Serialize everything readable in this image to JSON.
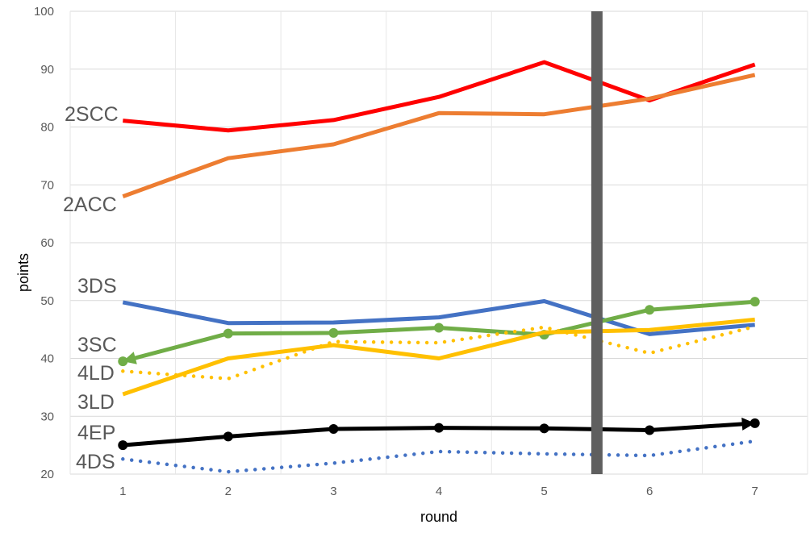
{
  "chart_data": {
    "type": "line",
    "xlabel": "round",
    "ylabel": "points",
    "x": [
      1,
      2,
      3,
      4,
      5,
      6,
      7
    ],
    "xlim": [
      0.5,
      7.5
    ],
    "ylim": [
      20,
      100
    ],
    "yticks": [
      20,
      30,
      40,
      50,
      60,
      70,
      80,
      90,
      100
    ],
    "grid": true,
    "divider_x": 5.5,
    "divider_color": "#5f5f5f",
    "series": [
      {
        "name": "2SCC",
        "values": [
          81.1,
          79.4,
          81.2,
          85.2,
          91.2,
          84.6,
          90.8
        ],
        "color": "#ff0000",
        "dash": "solid",
        "markers": "none"
      },
      {
        "name": "2ACC",
        "values": [
          68.0,
          74.6,
          77.0,
          82.4,
          82.2,
          84.9,
          89.0
        ],
        "color": "#ed7d31",
        "dash": "solid",
        "markers": "none"
      },
      {
        "name": "3DS",
        "values": [
          49.7,
          46.1,
          46.2,
          47.1,
          49.9,
          44.2,
          45.8
        ],
        "color": "#4472c4",
        "dash": "solid",
        "markers": "none"
      },
      {
        "name": "3SC",
        "values": [
          39.5,
          44.3,
          44.4,
          45.3,
          44.1,
          48.4,
          49.8
        ],
        "color": "#70ad47",
        "dash": "solid",
        "markers": "dots-arrow-start"
      },
      {
        "name": "4LD",
        "values": [
          37.8,
          36.5,
          42.9,
          42.7,
          45.4,
          40.9,
          45.5
        ],
        "color": "#ffc000",
        "dash": "dotted",
        "markers": "none"
      },
      {
        "name": "3LD",
        "values": [
          33.8,
          40.0,
          42.3,
          40.0,
          44.5,
          44.9,
          46.7
        ],
        "color": "#ffc000",
        "dash": "solid",
        "markers": "none"
      },
      {
        "name": "4EP",
        "values": [
          25.0,
          26.5,
          27.8,
          28.0,
          27.9,
          27.6,
          28.8
        ],
        "color": "#000000",
        "dash": "solid",
        "markers": "dots-arrow-end"
      },
      {
        "name": "4DS",
        "values": [
          22.6,
          20.4,
          21.9,
          23.9,
          23.5,
          23.2,
          25.7
        ],
        "color": "#4472c4",
        "dash": "dotted",
        "markers": "none"
      }
    ]
  }
}
